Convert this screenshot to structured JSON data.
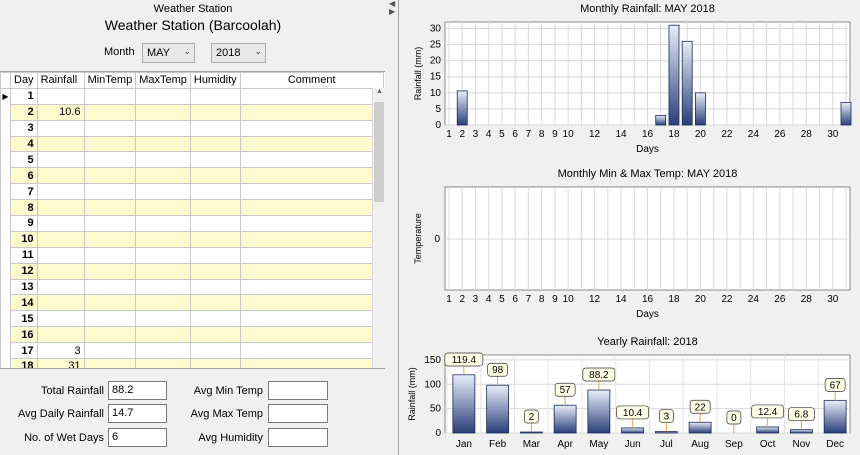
{
  "window": {
    "title": "Weather Station"
  },
  "station_title": "Weather Station (Barcoolah)",
  "filters": {
    "month_label": "Month",
    "month_value": "MAY",
    "year_value": "2018"
  },
  "grid": {
    "columns": [
      "Day",
      "Rainfall",
      "MinTemp",
      "MaxTemp",
      "Humidity",
      "Comment"
    ],
    "rows": [
      {
        "day": "1",
        "rain": ""
      },
      {
        "day": "2",
        "rain": "10.6"
      },
      {
        "day": "3",
        "rain": ""
      },
      {
        "day": "4",
        "rain": ""
      },
      {
        "day": "5",
        "rain": ""
      },
      {
        "day": "6",
        "rain": ""
      },
      {
        "day": "7",
        "rain": ""
      },
      {
        "day": "8",
        "rain": ""
      },
      {
        "day": "9",
        "rain": ""
      },
      {
        "day": "10",
        "rain": ""
      },
      {
        "day": "11",
        "rain": ""
      },
      {
        "day": "12",
        "rain": ""
      },
      {
        "day": "13",
        "rain": ""
      },
      {
        "day": "14",
        "rain": ""
      },
      {
        "day": "15",
        "rain": ""
      },
      {
        "day": "16",
        "rain": ""
      },
      {
        "day": "17",
        "rain": "3"
      },
      {
        "day": "18",
        "rain": "31"
      }
    ]
  },
  "summary": {
    "total_rainfall_label": "Total Rainfall",
    "total_rainfall": "88.2",
    "avg_daily_rainfall_label": "Avg Daily Rainfall",
    "avg_daily_rainfall": "14.7",
    "wet_days_label": "No. of Wet Days",
    "wet_days": "6",
    "avg_min_temp_label": "Avg Min Temp",
    "avg_min_temp": "",
    "avg_max_temp_label": "Avg Max Temp",
    "avg_max_temp": "",
    "avg_humidity_label": "Avg Humidity",
    "avg_humidity": ""
  },
  "chart_data": [
    {
      "type": "bar",
      "title": "Monthly Rainfall: MAY 2018",
      "xlabel": "Days",
      "ylabel": "Rainfall (mm)",
      "ylim": [
        0,
        32
      ],
      "yticks": [
        0,
        5,
        10,
        15,
        20,
        25,
        30
      ],
      "xtick_labels": [
        "1",
        "2",
        "3",
        "4",
        "5",
        "6",
        "7",
        "8",
        "9",
        "10",
        "12",
        "14",
        "16",
        "18",
        "20",
        "22",
        "24",
        "26",
        "28",
        "30"
      ],
      "x": [
        2,
        17,
        18,
        19,
        20,
        31
      ],
      "values": [
        10.6,
        3,
        31,
        26,
        10,
        7
      ],
      "grid": true
    },
    {
      "type": "bar",
      "title": "Monthly Min & Max Temp: MAY 2018",
      "xlabel": "Days",
      "ylabel": "Temperature",
      "yticks": [
        0
      ],
      "xtick_labels": [
        "1",
        "2",
        "3",
        "4",
        "5",
        "6",
        "7",
        "8",
        "9",
        "10",
        "12",
        "14",
        "16",
        "18",
        "20",
        "22",
        "24",
        "26",
        "28",
        "30"
      ],
      "values": [],
      "grid": true
    },
    {
      "type": "bar",
      "title": "Yearly Rainfall: 2018",
      "xlabel": "",
      "ylabel": "Rainfall (mm)",
      "ylim": [
        0,
        160
      ],
      "yticks": [
        0,
        50,
        100,
        150
      ],
      "categories": [
        "Jan",
        "Feb",
        "Mar",
        "Apr",
        "May",
        "Jun",
        "Jul",
        "Aug",
        "Sep",
        "Oct",
        "Nov",
        "Dec"
      ],
      "values": [
        119.4,
        98,
        2,
        57,
        88.2,
        10.4,
        3,
        22,
        0,
        12.4,
        6.8,
        67
      ],
      "data_labels": [
        "119.4",
        "98",
        "2",
        "57",
        "88.2",
        "10.4",
        "3",
        "22",
        "0",
        "12.4",
        "6.8",
        "67"
      ],
      "grid": true
    }
  ],
  "colors": {
    "row_highlight": "#fffacd",
    "bar_top": "#e8eef8",
    "bar_bottom": "#2a3f7a",
    "label_line": "#f0a040"
  }
}
